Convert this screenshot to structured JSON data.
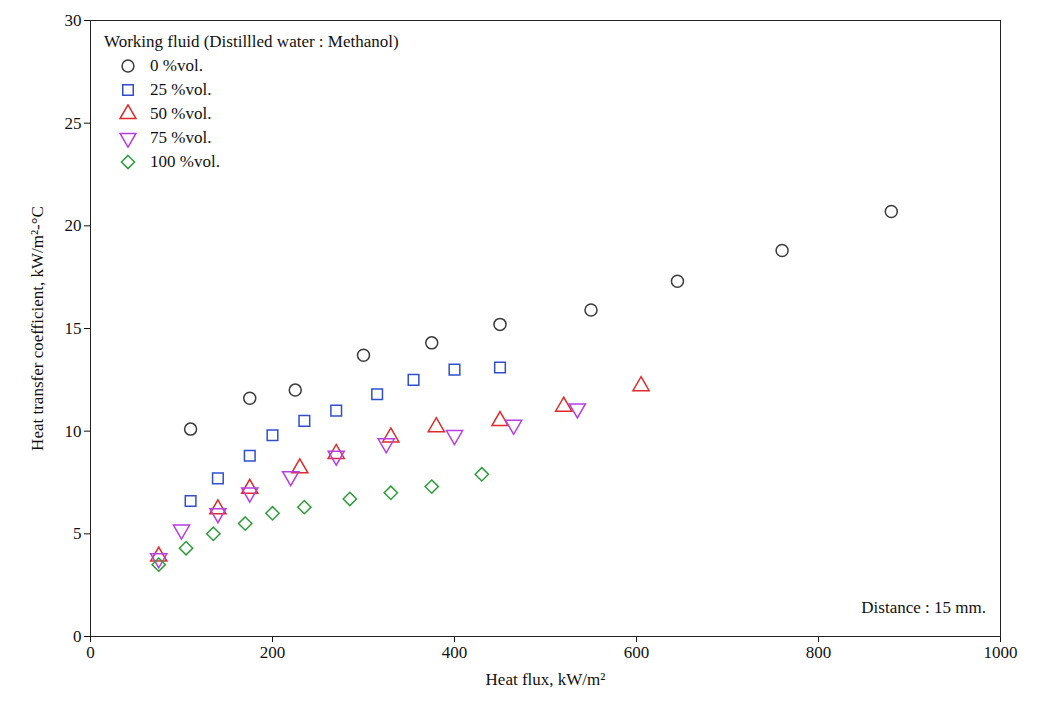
{
  "chart_data": {
    "type": "scatter",
    "xlabel": "Heat flux, kW/m²",
    "ylabel": "Heat transfer coefficient, kW/m²-°C",
    "xlim": [
      0,
      1000
    ],
    "xticks": [
      0,
      200,
      400,
      600,
      800,
      1000
    ],
    "ylim": [
      0,
      30
    ],
    "yticks": [
      0,
      5,
      10,
      15,
      20,
      25,
      30
    ],
    "grid": false,
    "legend": "upper left",
    "legend_title": "Working fluid (Distillled water : Methanol)",
    "annotations": [
      "Distance : 15 mm."
    ],
    "series": [
      {
        "name": "0 %vol.",
        "color": "#3a3a3a",
        "marker": "circle",
        "x": [
          110,
          175,
          225,
          300,
          375,
          450,
          550,
          645,
          760,
          880
        ],
        "values": [
          10.1,
          11.6,
          12.0,
          13.7,
          14.3,
          15.2,
          15.9,
          17.3,
          18.8,
          20.7
        ]
      },
      {
        "name": "25 %vol.",
        "color": "#2f4fd0",
        "marker": "square",
        "x": [
          110,
          140,
          175,
          200,
          235,
          270,
          315,
          355,
          400,
          450
        ],
        "values": [
          6.6,
          7.7,
          8.8,
          9.8,
          10.5,
          11.0,
          11.8,
          12.5,
          13.0,
          13.1
        ]
      },
      {
        "name": "50 %vol.",
        "color": "#e02a2a",
        "marker": "triangle",
        "x": [
          75,
          140,
          175,
          230,
          270,
          330,
          380,
          450,
          520,
          605
        ],
        "values": [
          3.9,
          6.2,
          7.2,
          8.2,
          8.9,
          9.7,
          10.2,
          10.5,
          11.2,
          12.2
        ]
      },
      {
        "name": "75 %vol.",
        "color": "#b63de8",
        "marker": "triangle-down",
        "x": [
          75,
          100,
          140,
          175,
          220,
          270,
          325,
          400,
          465,
          535
        ],
        "values": [
          3.8,
          5.2,
          6.0,
          7.0,
          7.8,
          8.8,
          9.4,
          9.8,
          10.3,
          11.1
        ]
      },
      {
        "name": "100 %vol.",
        "color": "#2e9e3a",
        "marker": "diamond",
        "x": [
          75,
          105,
          135,
          170,
          200,
          235,
          285,
          330,
          375,
          430
        ],
        "values": [
          3.5,
          4.3,
          5.0,
          5.5,
          6.0,
          6.3,
          6.7,
          7.0,
          7.3,
          7.9
        ]
      }
    ]
  }
}
